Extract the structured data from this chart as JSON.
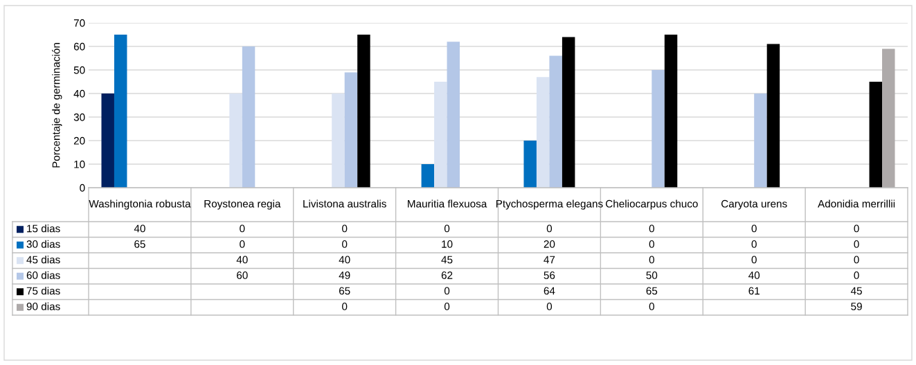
{
  "chart_data": {
    "type": "bar",
    "ylabel": "Porcentaje de germinación",
    "categories": [
      "Washingtonia robusta",
      "Roystonea regia",
      "Livistona australis",
      "Mauritia flexuosa",
      "Ptychosperma elegans",
      "Cheliocarpus chuco",
      "Caryota urens",
      "Adonidia merrillii"
    ],
    "series": [
      {
        "name": "15 dias",
        "color": "#002060",
        "values": [
          40,
          0,
          0,
          0,
          0,
          0,
          0,
          0
        ]
      },
      {
        "name": "30 dias",
        "color": "#0070c0",
        "values": [
          65,
          0,
          0,
          10,
          20,
          0,
          0,
          0
        ]
      },
      {
        "name": "45 dias",
        "color": "#dae3f3",
        "values": [
          null,
          40,
          40,
          45,
          47,
          0,
          0,
          0
        ]
      },
      {
        "name": "60 dias",
        "color": "#b4c7e7",
        "values": [
          null,
          60,
          49,
          62,
          56,
          50,
          40,
          0
        ]
      },
      {
        "name": "75 dias",
        "color": "#000000",
        "values": [
          null,
          null,
          65,
          0,
          64,
          65,
          61,
          45
        ]
      },
      {
        "name": "90 dias",
        "color": "#aeaaaa",
        "values": [
          null,
          null,
          0,
          0,
          0,
          0,
          null,
          59
        ]
      }
    ],
    "ylim": [
      0,
      70
    ],
    "yticks": [
      0,
      10,
      20,
      30,
      40,
      50,
      60,
      70
    ],
    "grid": "y",
    "data_labels": true,
    "legend": "bottom",
    "tick_labels": "y"
  }
}
